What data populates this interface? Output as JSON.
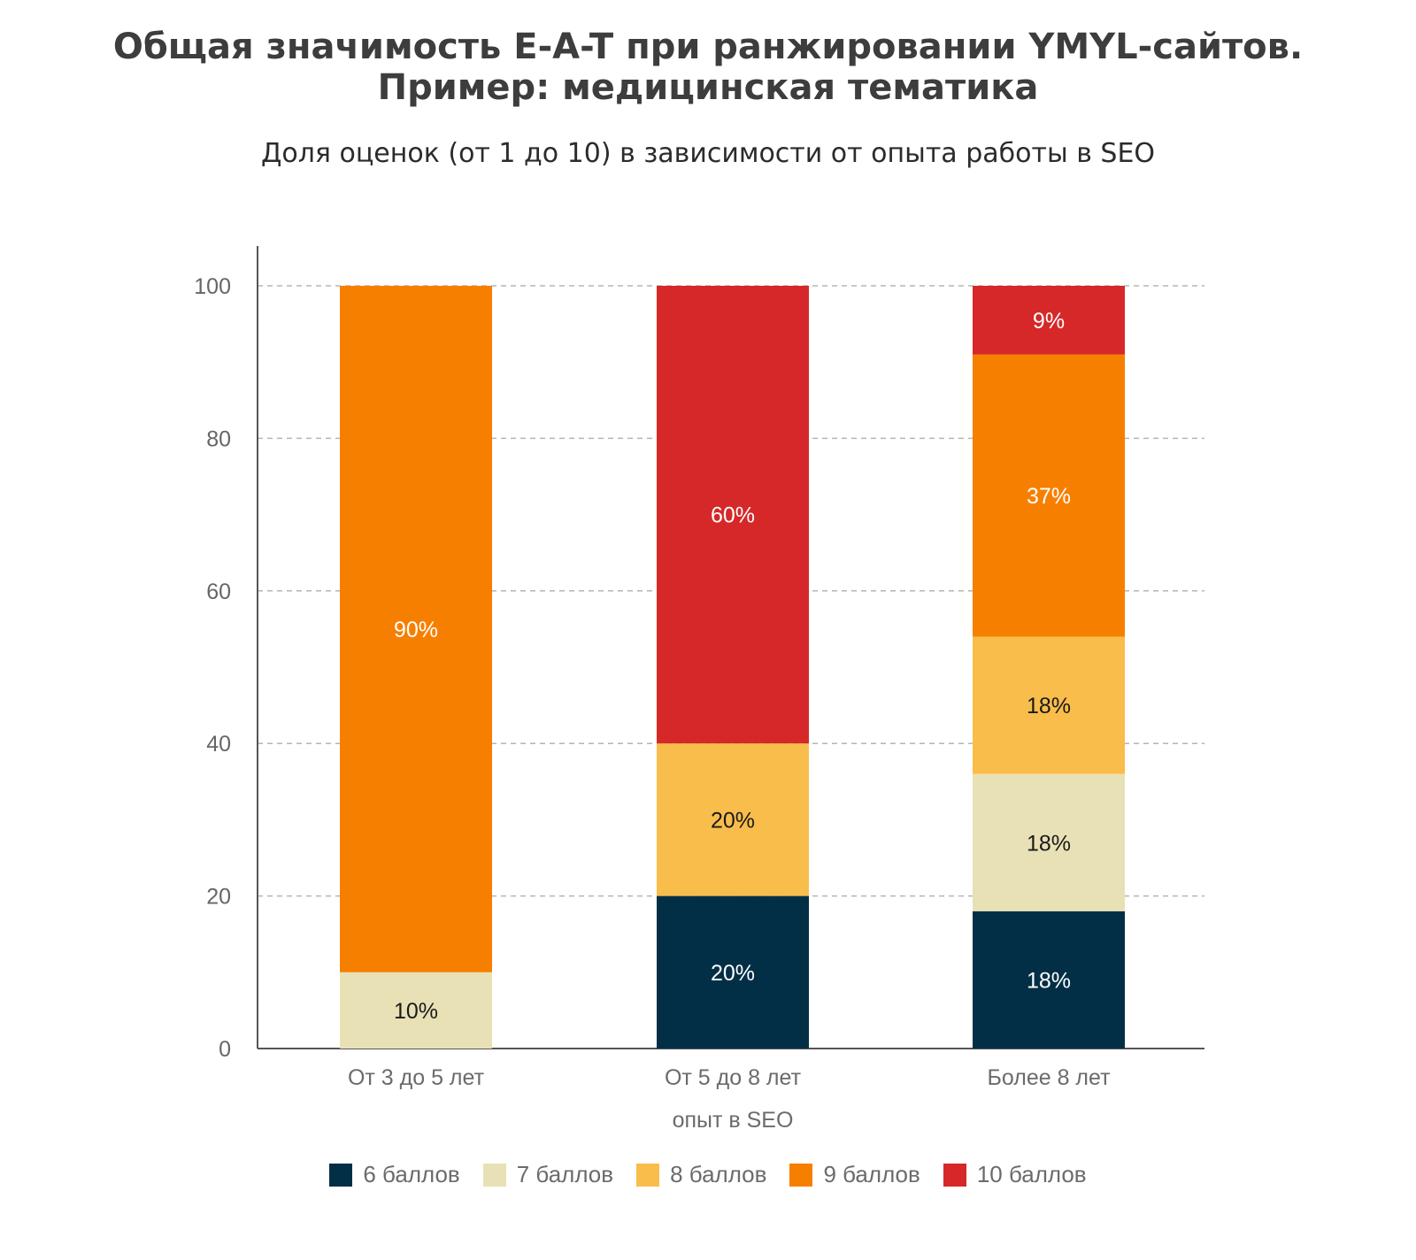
{
  "header": {
    "title_line1": "Общая значимость E-A-T при ранжировании YMYL-сайтов.",
    "title_line2": "Пример: медицинская тематика",
    "subtitle": "Доля оценок (от 1 до 10) в зависимости от опыта работы в SEO"
  },
  "chart_data": {
    "type": "bar",
    "stacked": true,
    "title": "Общая значимость E-A-T при ранжировании YMYL-сайтов. Пример: медицинская тематика",
    "subtitle": "Доля оценок (от 1 до 10) в зависимости от опыта работы в SEO",
    "xlabel": "опыт в SEO",
    "ylabel": "",
    "ylim": [
      0,
      100
    ],
    "yticks": [
      0,
      20,
      40,
      60,
      80,
      100
    ],
    "grid": true,
    "legend_position": "bottom",
    "categories": [
      "От 3 до 5 лет",
      "От 5 до 8 лет",
      "Более 8 лет"
    ],
    "series": [
      {
        "name": "6 баллов",
        "color": "#022f46",
        "label_color": "#ffffff",
        "values": [
          0,
          20,
          18
        ],
        "labels": [
          "",
          "20%",
          "18%"
        ]
      },
      {
        "name": "7 баллов",
        "color": "#e8e1b6",
        "label_color": "#1a1a1a",
        "values": [
          10,
          0,
          18
        ],
        "labels": [
          "10%",
          "",
          "18%"
        ]
      },
      {
        "name": "8 баллов",
        "color": "#f9bd4b",
        "label_color": "#1a1a1a",
        "values": [
          0,
          20,
          18
        ],
        "labels": [
          "",
          "20%",
          "18%"
        ]
      },
      {
        "name": "9 баллов",
        "color": "#f77f00",
        "label_color": "#ffffff",
        "values": [
          90,
          0,
          37
        ],
        "labels": [
          "90%",
          "",
          "37%"
        ]
      },
      {
        "name": "10 баллов",
        "color": "#d62828",
        "label_color": "#ffffff",
        "values": [
          0,
          60,
          9
        ],
        "labels": [
          "",
          "60%",
          "9%"
        ]
      }
    ]
  }
}
